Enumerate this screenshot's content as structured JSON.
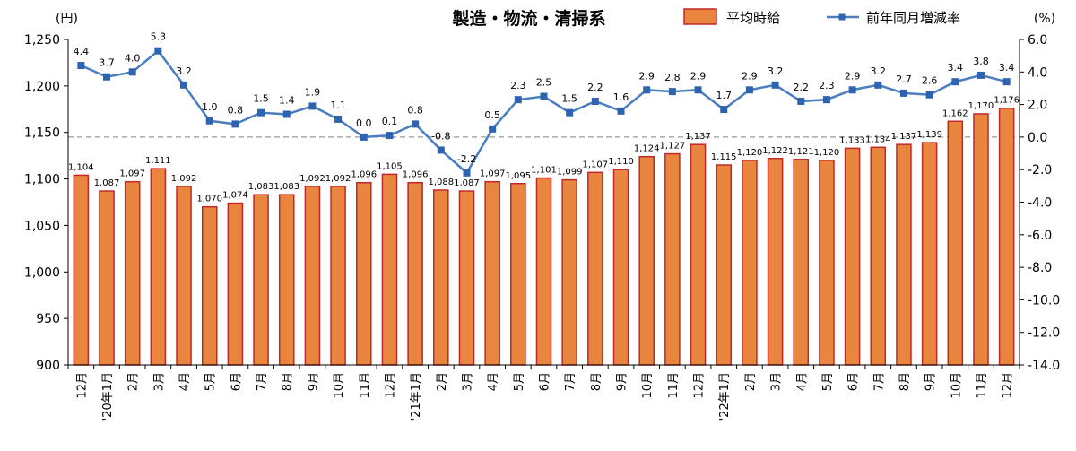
{
  "chart_data": {
    "type": "bar+line",
    "title": "製造・物流・清掃系",
    "y_left_unit": "(円)",
    "y_right_unit": "(%)",
    "y_left_range": [
      900,
      1250
    ],
    "y_left_ticks": [
      "900",
      "950",
      "1,000",
      "1,050",
      "1,100",
      "1,150",
      "1,200",
      "1,250"
    ],
    "y_right_range": [
      -14.0,
      6.0
    ],
    "y_right_ticks": [
      "-14.0",
      "-12.0",
      "-10.0",
      "-8.0",
      "-6.0",
      "-4.0",
      "-2.0",
      "0.0",
      "2.0",
      "4.0",
      "6.0"
    ],
    "categories": [
      "12月",
      "'20年1月",
      "2月",
      "3月",
      "4月",
      "5月",
      "6月",
      "7月",
      "8月",
      "9月",
      "10月",
      "11月",
      "12月",
      "'21年1月",
      "2月",
      "3月",
      "4月",
      "5月",
      "6月",
      "7月",
      "8月",
      "9月",
      "10月",
      "11月",
      "12月",
      "'22年1月",
      "2月",
      "3月",
      "4月",
      "5月",
      "6月",
      "7月",
      "8月",
      "9月",
      "10月",
      "11月",
      "12月"
    ],
    "series": [
      {
        "name": "平均時給",
        "type": "bar",
        "axis": "left",
        "color": "#E8853F",
        "border_color": "#C0282A",
        "values": [
          1104,
          1087,
          1097,
          1111,
          1092,
          1070,
          1074,
          1083,
          1083,
          1092,
          1092,
          1096,
          1105,
          1096,
          1088,
          1087,
          1097,
          1095,
          1101,
          1099,
          1107,
          1110,
          1124,
          1127,
          1137,
          1115,
          1120,
          1122,
          1121,
          1120,
          1133,
          1134,
          1137,
          1139,
          1162,
          1170,
          1176
        ],
        "labels": [
          "1,104",
          "1,087",
          "1,097",
          "1,111",
          "1,092",
          "1,070",
          "1,074",
          "1,083",
          "1,083",
          "1,092",
          "1,092",
          "1,096",
          "1,105",
          "1,096",
          "1,088",
          "1,087",
          "1,097",
          "1,095",
          "1,101",
          "1,099",
          "1,107",
          "1,110",
          "1,124",
          "1,127",
          "1,137",
          "1,115",
          "1,120",
          "1,122",
          "1,121",
          "1,120",
          "1,133",
          "1,134",
          "1,137",
          "1,139",
          "1,162",
          "1,170",
          "1,176"
        ]
      },
      {
        "name": "前年同月増減率",
        "type": "line",
        "axis": "right",
        "color": "#4A7EC0",
        "values": [
          4.4,
          3.7,
          4.0,
          5.3,
          3.2,
          1.0,
          0.8,
          1.5,
          1.4,
          1.9,
          1.1,
          0.0,
          0.1,
          0.8,
          -0.8,
          -2.2,
          0.5,
          2.3,
          2.5,
          1.5,
          2.2,
          1.6,
          2.9,
          2.8,
          2.9,
          1.7,
          2.9,
          3.2,
          2.2,
          2.3,
          2.9,
          3.2,
          2.7,
          2.6,
          3.4,
          3.8,
          3.4
        ],
        "labels": [
          "4.4",
          "3.7",
          "4.0",
          "5.3",
          "3.2",
          "1.0",
          "0.8",
          "1.5",
          "1.4",
          "1.9",
          "1.1",
          "0.0",
          "0.1",
          "0.8",
          "-0.8",
          "-2.2",
          "0.5",
          "2.3",
          "2.5",
          "1.5",
          "2.2",
          "1.6",
          "2.9",
          "2.8",
          "2.9",
          "1.7",
          "2.9",
          "3.2",
          "2.2",
          "2.3",
          "2.9",
          "3.2",
          "2.7",
          "2.6",
          "3.4",
          "3.8",
          "3.4"
        ]
      }
    ],
    "zero_line": "dashed",
    "legend_position": "top-right"
  }
}
